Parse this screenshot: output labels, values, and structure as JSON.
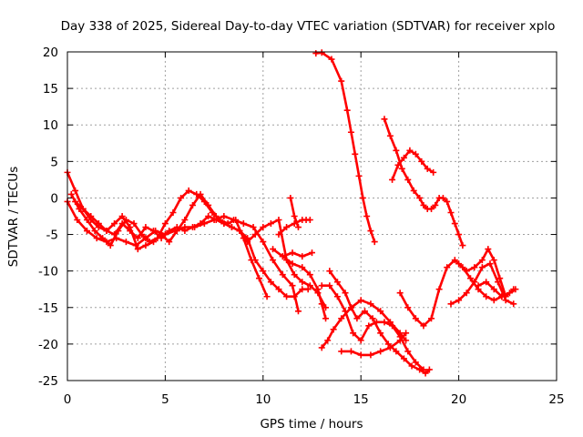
{
  "chart_data": {
    "type": "scatter",
    "title": "Day 338 of 2025, Sidereal Day-to-day VTEC variation (SDTVAR) for receiver xplo",
    "xlabel": "GPS time / hours",
    "ylabel": "SDTVAR / TECUs",
    "xlim": [
      0,
      25
    ],
    "ylim": [
      -25,
      20
    ],
    "xticks": [
      "0",
      "5",
      "10",
      "15",
      "20",
      "25"
    ],
    "yticks": [
      "20",
      "15",
      "10",
      "5",
      "0",
      "-5",
      "-10",
      "-15",
      "-20",
      "-25"
    ],
    "grid": true,
    "marker": "+",
    "color": "#ff0000",
    "series": [
      {
        "name": "trace-01",
        "x": [
          0,
          0.4,
          0.8,
          1.2,
          1.6,
          2.0,
          2.4,
          2.8,
          3.2,
          3.6,
          4.0,
          4.4,
          4.8,
          5.2,
          5.6,
          6.0,
          6.4,
          6.8,
          7.2,
          7.6,
          8.0,
          8.4,
          8.8,
          9.2,
          9.6,
          10.0,
          10.4,
          10.8,
          11.2,
          11.6,
          12.0,
          12.3
        ],
        "y": [
          3.5,
          1.0,
          -1.5,
          -3.0,
          -4.0,
          -4.5,
          -5.0,
          -3.5,
          -4.5,
          -5.5,
          -4.0,
          -4.5,
          -5.5,
          -4.5,
          -4.0,
          -4.5,
          -4.0,
          -3.5,
          -2.5,
          -3.0,
          -3.5,
          -4.0,
          -4.5,
          -5.5,
          -8.5,
          -10.0,
          -11.5,
          -12.5,
          -13.5,
          -13.5,
          -12.5,
          -12.5
        ]
      },
      {
        "name": "trace-02",
        "x": [
          0,
          0.5,
          1.0,
          1.5,
          2.0,
          2.5,
          3.0,
          3.5,
          4.0,
          4.5,
          5.0,
          5.5,
          6.0,
          6.5,
          7.0,
          7.5,
          8.0,
          8.5,
          9.0,
          9.5,
          10.0,
          10.5,
          11.0,
          11.5,
          11.8
        ],
        "y": [
          -0.5,
          -3.0,
          -4.5,
          -5.5,
          -6.0,
          -5.5,
          -6.0,
          -6.5,
          -5.5,
          -4.5,
          -5.0,
          -4.5,
          -4.0,
          -4.0,
          -3.5,
          -3.0,
          -2.5,
          -3.0,
          -3.5,
          -4.0,
          -6.0,
          -8.5,
          -10.5,
          -12.0,
          -15.5
        ]
      },
      {
        "name": "trace-03",
        "x": [
          0.2,
          0.6,
          1.0,
          1.4,
          1.8,
          2.2,
          2.6,
          3.0,
          3.4,
          3.8,
          4.2,
          4.6,
          5.0,
          5.4,
          5.8,
          6.2,
          6.6,
          7.0,
          7.4,
          7.8,
          8.2,
          8.6,
          9.0,
          9.4,
          9.8,
          10.2
        ],
        "y": [
          0.5,
          -1.5,
          -3.0,
          -4.5,
          -5.5,
          -6.5,
          -4.5,
          -3.0,
          -3.5,
          -5.0,
          -6.0,
          -5.5,
          -3.5,
          -2.0,
          0.0,
          1.0,
          0.5,
          -0.5,
          -2.0,
          -3.0,
          -3.5,
          -3.0,
          -5.5,
          -8.5,
          -11.0,
          -13.5
        ]
      },
      {
        "name": "trace-04",
        "x": [
          0.4,
          0.8,
          1.2,
          1.6,
          2.0,
          2.4,
          2.8,
          3.2,
          3.6,
          4.0,
          4.4,
          4.8,
          5.2,
          5.6,
          6.0,
          6.4,
          6.8,
          7.2,
          7.6,
          8.0,
          8.4,
          8.8,
          9.2,
          9.6,
          10.0,
          10.4,
          10.8,
          11.2,
          11.6,
          12.0,
          12.4,
          12.8,
          13.2
        ],
        "y": [
          -0.5,
          -1.5,
          -2.5,
          -3.5,
          -4.5,
          -3.5,
          -2.5,
          -4.0,
          -7.0,
          -6.5,
          -6.0,
          -5.0,
          -6.0,
          -4.5,
          -3.0,
          -1.0,
          0.5,
          -1.0,
          -2.5,
          -3.5,
          -4.0,
          -4.5,
          -6.0,
          -5.0,
          -4.0,
          -3.5,
          -3.0,
          -8.5,
          -10.5,
          -11.5,
          -12.0,
          -13.0,
          -15.0
        ]
      },
      {
        "name": "trace-05",
        "x": [
          10.8,
          11.2,
          11.6,
          12.0,
          12.2,
          12.4
        ],
        "y": [
          -5.0,
          -4.0,
          -3.5,
          -3.0,
          -3.0,
          -3.0
        ]
      },
      {
        "name": "trace-06",
        "x": [
          11.4,
          11.6,
          11.8
        ],
        "y": [
          0.0,
          -2.5,
          -4.0
        ]
      },
      {
        "name": "trace-07",
        "x": [
          10.5,
          11.0,
          11.5,
          12.0,
          12.4,
          12.8,
          13.0,
          13.2
        ],
        "y": [
          -7.0,
          -8.0,
          -9.0,
          -9.5,
          -10.5,
          -12.5,
          -14.5,
          -16.5
        ]
      },
      {
        "name": "trace-08",
        "x": [
          11.0,
          11.5,
          12.0,
          12.5
        ],
        "y": [
          -8.0,
          -7.5,
          -8.0,
          -7.5
        ]
      },
      {
        "name": "trace-09",
        "x": [
          12.7,
          13.0,
          13.5,
          14.0,
          14.3,
          14.5,
          14.7,
          14.9,
          15.1,
          15.3,
          15.5,
          15.7
        ],
        "y": [
          19.8,
          19.9,
          19.0,
          16.0,
          12.0,
          9.0,
          6.0,
          3.0,
          0.0,
          -2.5,
          -4.5,
          -6.0
        ]
      },
      {
        "name": "trace-10",
        "x": [
          13.0,
          13.4,
          13.8,
          14.2,
          14.6,
          15.0,
          15.4,
          15.8,
          16.2,
          16.6,
          17.0,
          17.4,
          17.8,
          18.2
        ],
        "y": [
          -12.0,
          -12.0,
          -13.5,
          -15.5,
          -18.5,
          -19.5,
          -17.5,
          -17.0,
          -17.0,
          -17.5,
          -19.0,
          -21.0,
          -22.5,
          -23.5
        ]
      },
      {
        "name": "trace-11",
        "x": [
          13.4,
          13.8,
          14.2,
          14.5,
          14.8,
          15.2,
          15.6,
          16.0,
          16.4,
          16.8,
          17.2,
          17.6,
          18.0,
          18.3,
          18.5
        ],
        "y": [
          -10.0,
          -11.5,
          -13.0,
          -15.0,
          -16.5,
          -15.5,
          -16.5,
          -18.5,
          -20.0,
          -21.0,
          -22.0,
          -23.0,
          -23.5,
          -24.0,
          -23.5
        ]
      },
      {
        "name": "trace-12",
        "x": [
          13.0,
          13.3,
          13.6,
          14.0,
          14.5,
          15.0,
          15.5,
          16.0,
          16.5,
          17.0,
          17.3
        ],
        "y": [
          -20.5,
          -19.5,
          -18.0,
          -16.5,
          -15.0,
          -14.0,
          -14.5,
          -15.5,
          -17.0,
          -18.5,
          -19.5
        ]
      },
      {
        "name": "trace-13",
        "x": [
          14.0,
          14.5,
          15.0,
          15.5,
          16.0,
          16.5,
          17.0,
          17.3
        ],
        "y": [
          -21.0,
          -21.0,
          -21.5,
          -21.5,
          -21.0,
          -20.5,
          -19.5,
          -18.5
        ]
      },
      {
        "name": "trace-14",
        "x": [
          16.2,
          16.5,
          16.8,
          17.1,
          17.4,
          17.7,
          18.0,
          18.2,
          18.4,
          18.6,
          18.8,
          19.0,
          19.2,
          19.4,
          19.6,
          19.8,
          20.0,
          20.2
        ],
        "y": [
          10.8,
          8.5,
          6.5,
          4.0,
          2.5,
          1.0,
          0.0,
          -1.0,
          -1.5,
          -1.5,
          -1.0,
          0.0,
          0.0,
          -0.5,
          -2.0,
          -3.5,
          -5.0,
          -6.5
        ]
      },
      {
        "name": "trace-15",
        "x": [
          16.6,
          16.9,
          17.2,
          17.5,
          17.8,
          18.1,
          18.4,
          18.7
        ],
        "y": [
          2.5,
          4.5,
          5.5,
          6.5,
          6.0,
          5.0,
          4.0,
          3.5
        ]
      },
      {
        "name": "trace-16",
        "x": [
          17.0,
          17.4,
          17.8,
          18.2,
          18.6,
          19.0,
          19.4,
          19.8,
          20.2,
          20.6,
          21.0,
          21.4,
          21.8,
          22.2,
          22.6,
          22.9
        ],
        "y": [
          -13.0,
          -15.0,
          -16.5,
          -17.5,
          -16.5,
          -12.5,
          -9.5,
          -8.5,
          -9.5,
          -11.0,
          -12.5,
          -13.5,
          -14.0,
          -13.5,
          -13.0,
          -12.5
        ]
      },
      {
        "name": "trace-17",
        "x": [
          19.6,
          20.0,
          20.4,
          20.8,
          21.2,
          21.6,
          22.0,
          22.4,
          22.8
        ],
        "y": [
          -14.5,
          -14.0,
          -13.0,
          -11.5,
          -9.5,
          -9.0,
          -11.5,
          -14.0,
          -14.5
        ]
      },
      {
        "name": "trace-18",
        "x": [
          20.0,
          20.4,
          20.8,
          21.2,
          21.5,
          21.8,
          22.1,
          22.4,
          22.8
        ],
        "y": [
          -9.0,
          -10.0,
          -9.5,
          -8.5,
          -7.0,
          -8.5,
          -11.0,
          -13.5,
          -12.5
        ]
      },
      {
        "name": "trace-19",
        "x": [
          21.0,
          21.4,
          21.8,
          22.2
        ],
        "y": [
          -12.0,
          -11.5,
          -12.5,
          -13.5
        ]
      }
    ]
  }
}
